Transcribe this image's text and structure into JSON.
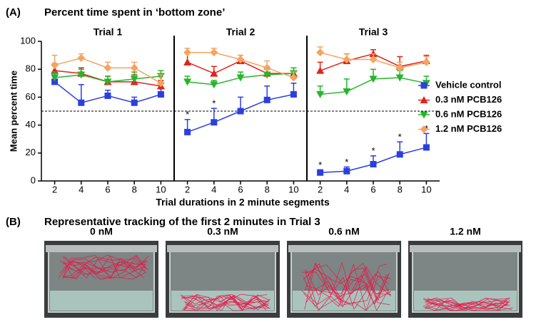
{
  "panel_a": {
    "label": "(A)",
    "title": "Percent time spent in ‘bottom zone’"
  },
  "chart_data": {
    "type": "line",
    "xlabel": "Trial durations in 2 minute segments",
    "ylabel": "Mean percent time",
    "ylim": [
      0,
      100
    ],
    "yticks": [
      0,
      20,
      40,
      60,
      80,
      100
    ],
    "xlim": [
      1,
      11
    ],
    "xticks": [
      2,
      4,
      6,
      8,
      10
    ],
    "reference_line": 50,
    "series": [
      {
        "name": "Vehicle control",
        "color": "#2b3fe0",
        "marker": "square"
      },
      {
        "name": "0.3 nM PCB126",
        "color": "#e2231a",
        "marker": "triangle-up"
      },
      {
        "name": "0.6 nM PCB126",
        "color": "#27b52a",
        "marker": "triangle-down"
      },
      {
        "name": "1.2 nM PCB126",
        "color": "#f4a460",
        "marker": "diamond"
      }
    ],
    "panels": [
      {
        "title": "Trial 1",
        "values": [
          [
            71,
            56,
            61,
            56,
            62
          ],
          [
            79,
            77,
            71,
            71,
            68
          ],
          [
            74,
            76,
            71,
            73,
            75
          ],
          [
            83,
            88,
            81,
            81,
            70
          ]
        ],
        "errors": [
          [
            5,
            13,
            4,
            4,
            4
          ],
          [
            5,
            4,
            4,
            5,
            4
          ],
          [
            4,
            4,
            4,
            5,
            4
          ],
          [
            7,
            3,
            4,
            4,
            6
          ]
        ],
        "significance": [
          null,
          null,
          null,
          null,
          null
        ]
      },
      {
        "title": "Trial 2",
        "values": [
          [
            35,
            42,
            50,
            58,
            62
          ],
          [
            85,
            77,
            86,
            77,
            77
          ],
          [
            71,
            69,
            74,
            76,
            77
          ],
          [
            92,
            92,
            87,
            81,
            74
          ]
        ],
        "errors": [
          [
            9,
            10,
            10,
            10,
            8
          ],
          [
            7,
            5,
            4,
            4,
            4
          ],
          [
            4,
            3,
            4,
            4,
            4
          ],
          [
            3,
            3,
            3,
            5,
            4
          ]
        ],
        "significance": [
          "*",
          "*",
          null,
          null,
          null
        ]
      },
      {
        "title": "Trial 3",
        "values": [
          [
            6,
            7,
            12,
            19,
            24
          ],
          [
            79,
            86,
            91,
            82,
            86
          ],
          [
            62,
            64,
            73,
            74,
            70
          ],
          [
            92,
            87,
            87,
            81,
            85
          ]
        ],
        "errors": [
          [
            2,
            3,
            6,
            9,
            10
          ],
          [
            6,
            5,
            3,
            7,
            4
          ],
          [
            6,
            9,
            7,
            5,
            5
          ],
          [
            4,
            4,
            4,
            4,
            4
          ]
        ],
        "significance": [
          "*",
          "*",
          "*",
          "*",
          "*"
        ]
      }
    ]
  },
  "panel_b": {
    "label": "(B)",
    "title": "Representative tracking of the first 2 minutes in Trial 3",
    "images": [
      "0 nM",
      "0.3 nM",
      "0.6 nM",
      "1.2 nM"
    ]
  }
}
